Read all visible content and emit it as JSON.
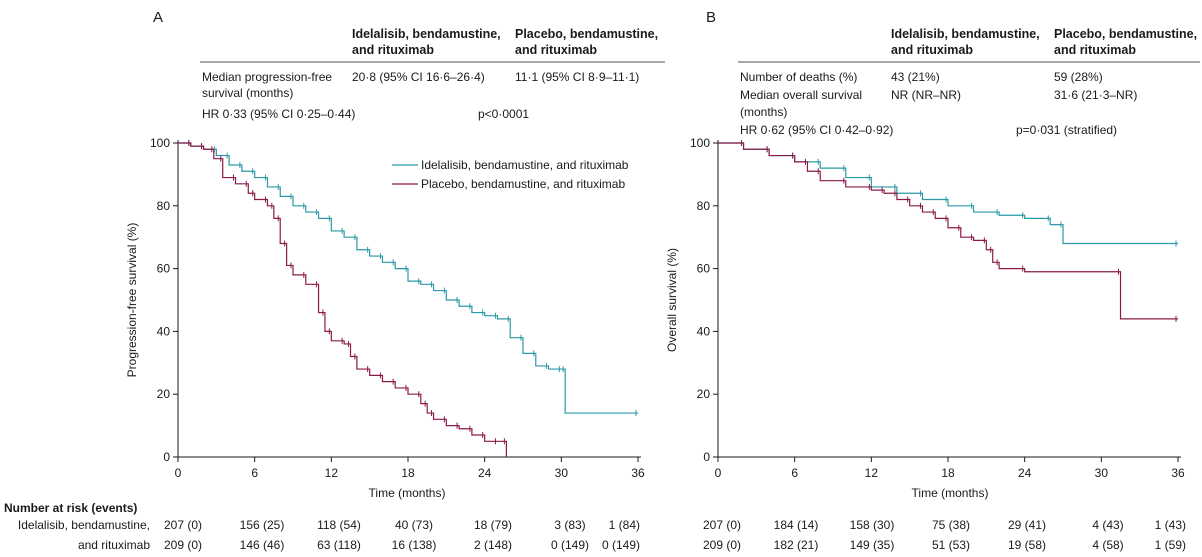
{
  "colors": {
    "idelalisib": "#2a9aa6",
    "placebo": "#8b1a4a",
    "axis": "#1a1a1a"
  },
  "panels": {
    "A": {
      "label": "A",
      "header_col1": [
        "Idelalisib, bendamustine,",
        "and rituximab"
      ],
      "header_col2": [
        "Placebo, bendamustine,",
        "and rituximab"
      ],
      "median_label": [
        "Median progression-free",
        "survival (months)"
      ],
      "median_ide": "20·8 (95% CI 16·6–26·4)",
      "median_pla": "11·1 (95% CI 8·9–11·1)",
      "hr": "HR 0·33 (95% CI 0·25–0·44)",
      "p": "p<0·0001"
    },
    "B": {
      "label": "B",
      "header_col1": [
        "Idelalisib, bendamustine,",
        "and rituximab"
      ],
      "header_col2": [
        "Placebo, bendamustine,",
        "and rituximab"
      ],
      "deaths_label": "Number of deaths (%)",
      "deaths_ide": "43 (21%)",
      "deaths_pla": "59 (28%)",
      "median_label": [
        "Median overall survival",
        "(months)"
      ],
      "median_ide": "NR (NR–NR)",
      "median_pla": "31·6 (21·3–NR)",
      "hr": "HR 0·62 (95% CI 0·42–0·92)",
      "p": "p=0·031 (stratified)"
    }
  },
  "risk_table": {
    "header": "Number at risk (events)",
    "row1_label": "Idelalisib, bendamustine,",
    "row2_label": "and rituximab",
    "A": {
      "ide": [
        "207 (0)",
        "156 (25)",
        "118 (54)",
        "40 (73)",
        "18 (79)",
        "3 (83)",
        "1 (84)"
      ],
      "pla": [
        "209 (0)",
        "146 (46)",
        "63 (118)",
        "16 (138)",
        "2 (148)",
        "0 (149)",
        "0 (149)"
      ]
    },
    "B": {
      "ide": [
        "207 (0)",
        "184 (14)",
        "158 (30)",
        "75 (38)",
        "29 (41)",
        "4 (43)",
        "1 (43)"
      ],
      "pla": [
        "209 (0)",
        "182 (21)",
        "149 (35)",
        "51 (53)",
        "19 (58)",
        "4 (58)",
        "1 (59)"
      ]
    }
  },
  "chart_data": [
    {
      "type": "line",
      "title": "A",
      "xlabel": "Time (months)",
      "ylabel": "Progression-free survival (%)",
      "xlim": [
        0,
        36
      ],
      "ylim": [
        0,
        100
      ],
      "xticks": [
        0,
        6,
        12,
        18,
        24,
        30,
        36
      ],
      "yticks": [
        0,
        20,
        40,
        60,
        80,
        100
      ],
      "legend_position": "top-right",
      "series": [
        {
          "name": "Idelalisib, bendamustine, and rituximab",
          "color": "#2a9aa6",
          "x": [
            0,
            1,
            2,
            3,
            4,
            5,
            6,
            7,
            8,
            9,
            10,
            11,
            12,
            13,
            14,
            15,
            16,
            17,
            18,
            19,
            20,
            21,
            22,
            23,
            24,
            25,
            26,
            27,
            28,
            29,
            30,
            30.3,
            36
          ],
          "y": [
            100,
            99,
            98,
            96,
            93,
            91,
            89,
            86,
            83,
            80,
            78,
            76,
            72,
            70,
            66,
            64,
            62,
            60,
            56,
            55,
            53,
            50,
            48,
            46,
            45,
            44,
            38,
            33,
            29,
            28,
            28,
            14,
            14
          ]
        },
        {
          "name": "Placebo, bendamustine, and rituximab",
          "color": "#8b1a4a",
          "x": [
            0,
            1,
            2,
            2.8,
            3.5,
            4.5,
            5.5,
            6,
            7,
            7.5,
            8,
            8.5,
            9,
            10,
            11,
            11.5,
            12,
            13,
            13.5,
            14,
            15,
            16,
            17,
            18,
            19,
            19.5,
            20,
            21,
            22,
            23,
            24,
            25,
            25.7
          ],
          "y": [
            100,
            99,
            98,
            95,
            89,
            87,
            84,
            82,
            80,
            76,
            68,
            61,
            58,
            55,
            46,
            40,
            37,
            36,
            32,
            28,
            26,
            24,
            22,
            20,
            17,
            14,
            12,
            10,
            9,
            7,
            5,
            5,
            0
          ]
        }
      ]
    },
    {
      "type": "line",
      "title": "B",
      "xlabel": "Time (months)",
      "ylabel": "Overall survival (%)",
      "xlim": [
        0,
        36
      ],
      "ylim": [
        0,
        100
      ],
      "xticks": [
        0,
        6,
        12,
        18,
        24,
        30,
        36
      ],
      "yticks": [
        0,
        20,
        40,
        60,
        80,
        100
      ],
      "series": [
        {
          "name": "Idelalisib, bendamustine, and rituximab",
          "color": "#2a9aa6",
          "x": [
            0,
            2,
            4,
            6,
            8,
            10,
            12,
            14,
            16,
            18,
            20,
            22,
            24,
            26,
            27,
            36
          ],
          "y": [
            100,
            98,
            96,
            94,
            92,
            89,
            86,
            84,
            82,
            80,
            78,
            77,
            76,
            74,
            68,
            68
          ]
        },
        {
          "name": "Placebo, bendamustine, and rituximab",
          "color": "#8b1a4a",
          "x": [
            0,
            2,
            4,
            6,
            7,
            8,
            10,
            12,
            13,
            14,
            15,
            16,
            17,
            18,
            19,
            20,
            21,
            21.5,
            22,
            24,
            31.5,
            36
          ],
          "y": [
            100,
            98,
            96,
            94,
            91,
            88,
            86,
            85,
            84,
            82,
            80,
            78,
            76,
            73,
            70,
            69,
            66,
            62,
            60,
            59,
            44,
            44
          ]
        }
      ]
    }
  ]
}
